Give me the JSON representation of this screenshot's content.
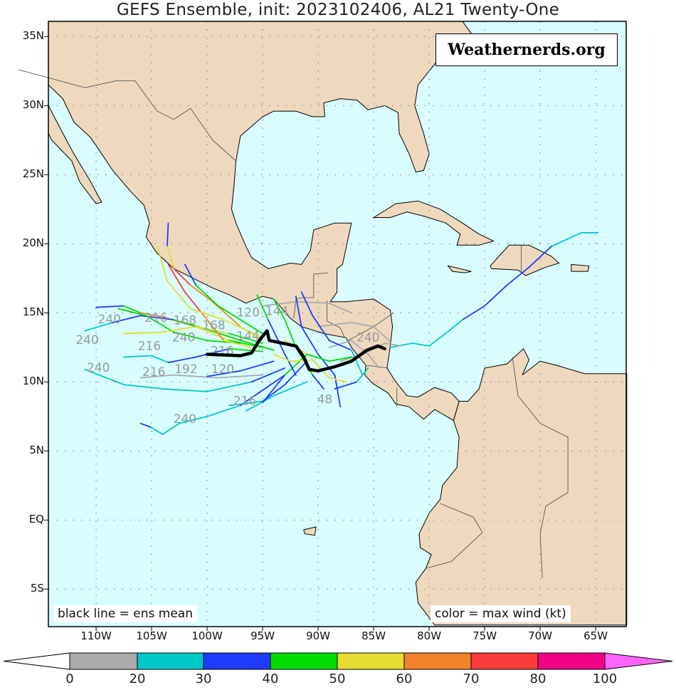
{
  "title": "GEFS Ensemble, init: 2023102406, AL21 Twenty-One",
  "watermark": "Weathernerds.org",
  "legend_left": "black line = ens mean",
  "legend_right": "color = max wind (kt)",
  "lat_labels": [
    "35N",
    "30N",
    "25N",
    "20N",
    "15N",
    "10N",
    "5N",
    "EQ",
    "5S"
  ],
  "lat_values": [
    35,
    30,
    25,
    20,
    15,
    10,
    5,
    0,
    -5
  ],
  "lon_labels": [
    "110W",
    "105W",
    "100W",
    "95W",
    "90W",
    "85W",
    "80W",
    "75W",
    "70W",
    "65W"
  ],
  "lon_values": [
    -110,
    -105,
    -100,
    -95,
    -90,
    -85,
    -80,
    -75,
    -70,
    -65
  ],
  "colorbar": {
    "labels": [
      "0",
      "20",
      "30",
      "40",
      "50",
      "60",
      "70",
      "80",
      "100"
    ],
    "bins": [
      [
        0,
        20,
        "#aaaaaa"
      ],
      [
        20,
        30,
        "#00c8c8"
      ],
      [
        30,
        40,
        "#1e3cff"
      ],
      [
        40,
        50,
        "#00dc00"
      ],
      [
        50,
        60,
        "#e6dc32"
      ],
      [
        60,
        70,
        "#f08228"
      ],
      [
        70,
        80,
        "#fa3c3c"
      ],
      [
        80,
        100,
        "#f00082"
      ]
    ],
    "under_color": "#ffffff",
    "over_color": "#ff64ff"
  },
  "colors": {
    "ocean": "#d9fdff",
    "land": "#eed9bf",
    "mean": "#000000",
    "label": "#999999"
  },
  "mean_track": [
    [
      -100,
      12
    ],
    [
      -97,
      11.9
    ],
    [
      -96,
      12.1
    ],
    [
      -95.3,
      13
    ],
    [
      -94.6,
      13.7
    ],
    [
      -94.4,
      13
    ],
    [
      -93.2,
      12.8
    ],
    [
      -92,
      12.6
    ],
    [
      -91.3,
      11.8
    ],
    [
      -90.8,
      10.9
    ],
    [
      -90,
      10.8
    ],
    [
      -88.5,
      11.1
    ],
    [
      -87,
      11.5
    ],
    [
      -85.6,
      12.3
    ],
    [
      -84.6,
      12.6
    ],
    [
      -84,
      12.4
    ]
  ],
  "tracks": [
    [
      [
        -110,
        15.4,
        35
      ],
      [
        -107.5,
        15.5,
        35
      ],
      [
        -106,
        15,
        45
      ],
      [
        -104,
        14.7,
        60
      ],
      [
        -101,
        14,
        60
      ],
      [
        -98,
        13,
        55
      ],
      [
        -95,
        12.5,
        45
      ]
    ],
    [
      [
        -111,
        13.7,
        25
      ],
      [
        -108.5,
        14.3,
        25
      ],
      [
        -106,
        14.8,
        35
      ],
      [
        -103,
        14.5,
        35
      ],
      [
        -100,
        13.8,
        45
      ],
      [
        -97,
        13,
        45
      ],
      [
        -94,
        12.3,
        40
      ]
    ],
    [
      [
        -108,
        15.3,
        45
      ],
      [
        -105.5,
        14.8,
        45
      ],
      [
        -103,
        13.6,
        45
      ],
      [
        -100,
        13,
        40
      ],
      [
        -97,
        12.8,
        45
      ]
    ],
    [
      [
        -107.5,
        13.5,
        55
      ],
      [
        -104,
        13.6,
        55
      ],
      [
        -101,
        14,
        55
      ],
      [
        -98,
        13.5,
        50
      ],
      [
        -95,
        12.8,
        45
      ]
    ],
    [
      [
        -103.5,
        18.5,
        70
      ],
      [
        -102,
        16.5,
        70
      ],
      [
        -100.5,
        15,
        70
      ],
      [
        -98.5,
        13,
        65
      ],
      [
        -96,
        12.5,
        55
      ]
    ],
    [
      [
        -103.5,
        21.5,
        30
      ],
      [
        -103.6,
        19.8,
        30
      ],
      [
        -103,
        18.2,
        55
      ],
      [
        -101.5,
        17,
        70
      ],
      [
        -99.5,
        15.8,
        65
      ],
      [
        -97,
        14,
        60
      ],
      [
        -95,
        13,
        50
      ]
    ],
    [
      [
        -104.5,
        19.8,
        50
      ],
      [
        -103.6,
        17.3,
        50
      ],
      [
        -101.5,
        15.3,
        55
      ],
      [
        -98.5,
        14.5,
        55
      ],
      [
        -95,
        13.2,
        50
      ]
    ],
    [
      [
        -102,
        18.5,
        30
      ],
      [
        -101,
        17,
        35
      ],
      [
        -99,
        15.5,
        40
      ],
      [
        -97,
        14.5,
        45
      ],
      [
        -95,
        13.5,
        45
      ]
    ],
    [
      [
        -111,
        10.9,
        25
      ],
      [
        -107.5,
        9.8,
        25
      ],
      [
        -104,
        9.5,
        25
      ],
      [
        -100,
        9.3,
        25
      ],
      [
        -96,
        10,
        25
      ],
      [
        -93,
        11,
        30
      ]
    ],
    [
      [
        -107.5,
        11.8,
        25
      ],
      [
        -105,
        11.9,
        25
      ],
      [
        -103.5,
        11.4,
        25
      ],
      [
        -101,
        11.8,
        30
      ],
      [
        -98,
        12.4,
        35
      ],
      [
        -95,
        12.2,
        40
      ]
    ],
    [
      [
        -106,
        10.3,
        15
      ],
      [
        -103,
        10.5,
        15
      ],
      [
        -99,
        10.3,
        15
      ],
      [
        -95,
        10.5,
        15
      ]
    ],
    [
      [
        -100,
        10.4,
        25
      ],
      [
        -97,
        10.8,
        30
      ],
      [
        -94,
        11.5,
        35
      ]
    ],
    [
      [
        -106,
        7,
        35
      ],
      [
        -105,
        6.7,
        35
      ],
      [
        -104,
        6.2,
        25
      ],
      [
        -102.5,
        7,
        25
      ],
      [
        -100,
        7.5,
        25
      ],
      [
        -97,
        8.3,
        25
      ],
      [
        -93,
        10.5,
        30
      ]
    ],
    [
      [
        -98,
        8.3,
        25
      ],
      [
        -95,
        8.6,
        25
      ],
      [
        -93,
        9.8,
        35
      ],
      [
        -91,
        11.5,
        35
      ]
    ],
    [
      [
        -96.5,
        7.9,
        25
      ],
      [
        -94,
        9,
        25
      ],
      [
        -91,
        10,
        25
      ]
    ],
    [
      [
        -95,
        8.5,
        35
      ],
      [
        -93,
        10.5,
        35
      ],
      [
        -91,
        12,
        40
      ]
    ],
    [
      [
        -64.8,
        20.8,
        15
      ],
      [
        -66.3,
        20.8,
        25
      ],
      [
        -69,
        19.8,
        25
      ],
      [
        -71,
        18.3,
        35
      ],
      [
        -73,
        17,
        35
      ],
      [
        -75,
        15.5,
        35
      ],
      [
        -77,
        14.5,
        35
      ],
      [
        -78.2,
        13.7,
        25
      ],
      [
        -80,
        12.6,
        25
      ],
      [
        -81.5,
        12.8,
        25
      ],
      [
        -83.5,
        12.5,
        25
      ]
    ],
    [
      [
        -90,
        14,
        15
      ],
      [
        -87,
        14.3,
        15
      ],
      [
        -85,
        14,
        15
      ],
      [
        -83.6,
        13,
        15
      ]
    ],
    [
      [
        -95,
        15.5,
        15
      ],
      [
        -92,
        15.8,
        15
      ],
      [
        -89,
        15.7,
        15
      ],
      [
        -87,
        15,
        15
      ]
    ],
    [
      [
        -88,
        11.5,
        15
      ],
      [
        -86,
        12,
        15
      ],
      [
        -84,
        12.8,
        15
      ],
      [
        -82.5,
        12.6,
        15
      ]
    ],
    [
      [
        -89,
        12.5,
        15
      ],
      [
        -87,
        13,
        15
      ],
      [
        -85.5,
        12,
        15
      ],
      [
        -84.5,
        11,
        15
      ]
    ],
    [
      [
        -94,
        16,
        35
      ],
      [
        -93,
        14.5,
        45
      ],
      [
        -92,
        12.5,
        45
      ],
      [
        -90.5,
        10.5,
        40
      ],
      [
        -89.5,
        9.5,
        35
      ]
    ],
    [
      [
        -92,
        16.2,
        25
      ],
      [
        -91.5,
        14,
        35
      ],
      [
        -90,
        12,
        35
      ],
      [
        -88.5,
        10.5,
        30
      ],
      [
        -88,
        8.2,
        30
      ]
    ],
    [
      [
        -93,
        13,
        45
      ],
      [
        -91,
        12,
        50
      ],
      [
        -89,
        11.5,
        45
      ],
      [
        -87,
        11.8,
        40
      ]
    ],
    [
      [
        -95.5,
        16.3,
        45
      ],
      [
        -94.5,
        14.5,
        40
      ],
      [
        -93,
        12,
        35
      ],
      [
        -92,
        10.5,
        35
      ]
    ],
    [
      [
        -88.5,
        9.5,
        35
      ],
      [
        -86.5,
        10,
        30
      ],
      [
        -85.5,
        11,
        25
      ]
    ],
    [
      [
        -94,
        12,
        60
      ],
      [
        -92.5,
        11.5,
        55
      ],
      [
        -90.5,
        11.6,
        50
      ],
      [
        -89,
        10.3,
        55
      ],
      [
        -87.5,
        10,
        50
      ]
    ],
    [
      [
        -91.5,
        16.5,
        25
      ],
      [
        -90.5,
        14.8,
        30
      ],
      [
        -89,
        13,
        35
      ],
      [
        -87,
        12.3,
        30
      ],
      [
        -86,
        10.5,
        25
      ]
    ]
  ],
  "hour_labels": [
    {
      "text": "240",
      "lon": -108.8,
      "lat": 14.6
    },
    {
      "text": "216",
      "lon": -104.6,
      "lat": 14.7
    },
    {
      "text": "240",
      "lon": -110.8,
      "lat": 13.1
    },
    {
      "text": "216",
      "lon": -105.2,
      "lat": 13.6
    },
    {
      "text": "240",
      "lon": -103.4,
      "lat": 13.3
    },
    {
      "text": "168",
      "lon": -102,
      "lat": 13.6
    },
    {
      "text": "120",
      "lon": -96.3,
      "lat": 15.1
    },
    {
      "text": "144",
      "lon": -95,
      "lat": 15.2
    },
    {
      "text": "240",
      "lon": -109.8,
      "lat": 11.1
    },
    {
      "text": "216",
      "lon": -104.8,
      "lat": 10.8
    },
    {
      "text": "192",
      "lon": -101.9,
      "lat": 11
    },
    {
      "text": "120",
      "lon": -98.6,
      "lat": 11
    },
    {
      "text": "216",
      "lon": -101.2,
      "lat": 12.3
    },
    {
      "text": "168",
      "lon": -99.4,
      "lat": 12.3
    },
    {
      "text": "144",
      "lon": -97.6,
      "lat": 13.4
    },
    {
      "text": "216",
      "lon": -96.6,
      "lat": 8.7
    },
    {
      "text": "240",
      "lon": -102,
      "lat": 7.4
    },
    {
      "text": "48",
      "lon": -89.4,
      "lat": 8.8
    },
    {
      "text": "240",
      "lon": -85.5,
      "lat": 13.3
    }
  ]
}
